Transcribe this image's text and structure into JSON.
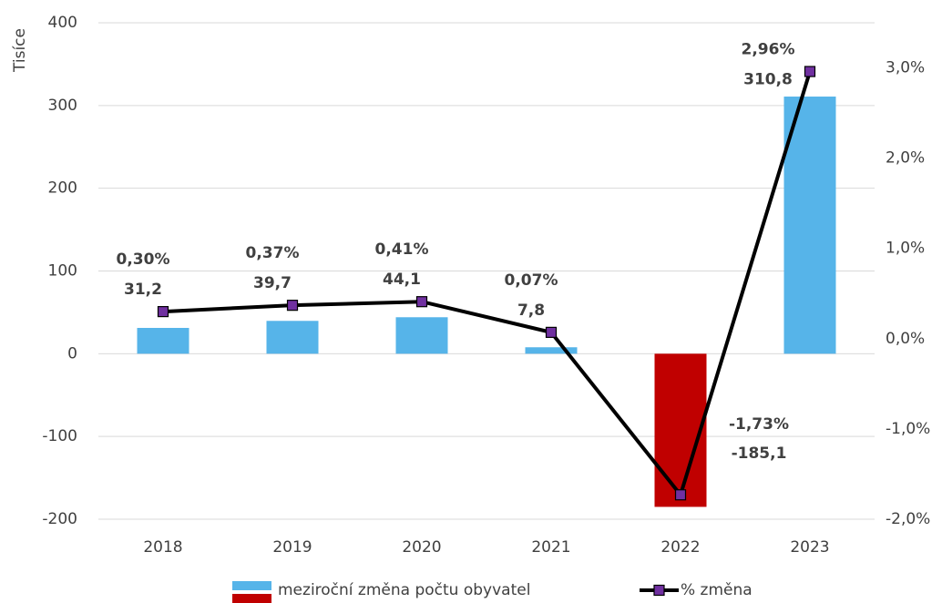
{
  "chart_data": {
    "type": "bar",
    "y_label": "Tisíce",
    "categories": [
      "2018",
      "2019",
      "2020",
      "2021",
      "2022",
      "2023"
    ],
    "ylim": [
      -200,
      400
    ],
    "yticks": [
      -200,
      -100,
      0,
      100,
      200,
      300,
      400
    ],
    "y2lim": [
      -2,
      3.5
    ],
    "y2ticks": [
      {
        "value": -2,
        "label": "-2,0%"
      },
      {
        "value": -1,
        "label": "-1,0%"
      },
      {
        "value": 0,
        "label": "0,0%"
      },
      {
        "value": 1,
        "label": "1,0%"
      },
      {
        "value": 2,
        "label": "2,0%"
      },
      {
        "value": 3,
        "label": "3,0%"
      }
    ],
    "y2_tick_color": "#00b050",
    "grid": true,
    "legend": "bottom",
    "series": [
      {
        "name": "meziroční změna počtu obyvatel",
        "type": "bar",
        "colors": [
          "#56b4e9",
          "#56b4e9",
          "#56b4e9",
          "#56b4e9",
          "#c00000",
          "#56b4e9"
        ],
        "values": [
          31.2,
          39.7,
          44.1,
          7.8,
          -185.1,
          310.8
        ],
        "value_labels": [
          "31,2",
          "39,7",
          "44,1",
          "7,8",
          "-185,1",
          "310,8"
        ],
        "label_colors": [
          "#404040",
          "#404040",
          "#404040",
          "#404040",
          "#ff0000",
          "#404040"
        ]
      },
      {
        "name": "% změna",
        "type": "line",
        "axis": "y2",
        "color": "#000000",
        "marker_color": "#7030a0",
        "values": [
          0.3,
          0.37,
          0.41,
          0.07,
          -1.73,
          2.96
        ],
        "value_labels": [
          "0,30%",
          "0,37%",
          "0,41%",
          "0,07%",
          "-1,73%",
          "2,96%"
        ],
        "label_colors": [
          "#00b050",
          "#00b050",
          "#00b050",
          "#00b050",
          "#c00000",
          "#00b050"
        ]
      }
    ]
  }
}
